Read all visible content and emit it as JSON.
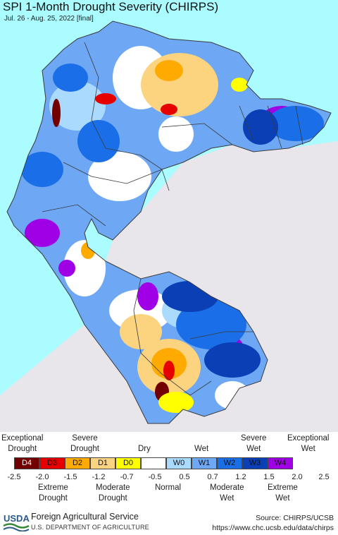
{
  "map": {
    "title": "SPI 1-Month Drought Severity (CHIRPS)",
    "subtitle": "Jul. 26 - Aug. 25, 2022 [final]",
    "colors": {
      "ocean": "#aafcff",
      "outside": "#e8e6ea",
      "border": "#3a3a3a"
    }
  },
  "legend": {
    "top_labels": [
      {
        "text": "Exceptional\nDrought"
      },
      {
        "text": "Severe\nDrought"
      },
      {
        "text": "Dry"
      },
      {
        "text": "Wet"
      },
      {
        "text": "Severe\nWet"
      },
      {
        "text": "Exceptional\nWet"
      }
    ],
    "categories": [
      {
        "code": "D4",
        "color": "#730000"
      },
      {
        "code": "D3",
        "color": "#e60000"
      },
      {
        "code": "D2",
        "color": "#ffaa00"
      },
      {
        "code": "D1",
        "color": "#fcd37f"
      },
      {
        "code": "D0",
        "color": "#ffff00"
      },
      {
        "code": "",
        "color": "#ffffff"
      },
      {
        "code": "W0",
        "color": "#aadbff"
      },
      {
        "code": "W1",
        "color": "#6ea8f5"
      },
      {
        "code": "W2",
        "color": "#1a6ee8"
      },
      {
        "code": "W3",
        "color": "#0a3fb5"
      },
      {
        "code": "W4",
        "color": "#a000e6"
      }
    ],
    "ticks": [
      "-2.5",
      "-2.0",
      "-1.5",
      "-1.2",
      "-0.7",
      "-0.5",
      "0.5",
      "0.7",
      "1.2",
      "1.5",
      "2.0",
      "2.5"
    ],
    "bottom_labels": [
      {
        "text": "Extreme\nDrought"
      },
      {
        "text": "Moderate\nDrought"
      },
      {
        "text": "Normal"
      },
      {
        "text": "Moderate\nWet"
      },
      {
        "text": "Extreme\nWet"
      }
    ]
  },
  "footer": {
    "logo_text": "USDA",
    "agency": "Foreign Agricultural Service",
    "department": "U.S. DEPARTMENT OF AGRICULTURE",
    "source": "Source: CHIRPS/UCSB",
    "url": "https://www.chc.ucsb.edu/data/chirps"
  }
}
